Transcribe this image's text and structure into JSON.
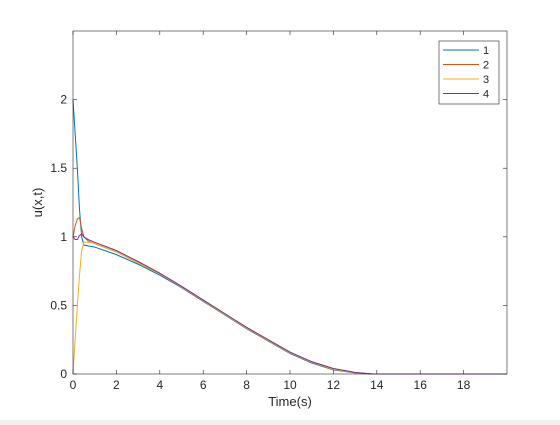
{
  "chart_data": {
    "type": "line",
    "title": "",
    "xlabel": "Time(s)",
    "ylabel": "u(x,t)",
    "xlim": [
      0,
      20
    ],
    "ylim": [
      0,
      2.5
    ],
    "xticks": [
      0,
      2,
      4,
      6,
      8,
      10,
      12,
      14,
      16,
      18
    ],
    "yticks": [
      0,
      0.5,
      1,
      1.5,
      2
    ],
    "ytick_labels": [
      "0",
      "0.5",
      "1",
      "1.5",
      "2"
    ],
    "grid": false,
    "legend_position": "top-right",
    "series": [
      {
        "name": "1",
        "color": "#0072BD",
        "points": [
          [
            0,
            2.0
          ],
          [
            0.1,
            1.75
          ],
          [
            0.2,
            1.5
          ],
          [
            0.3,
            1.2
          ],
          [
            0.4,
            1.0
          ],
          [
            0.5,
            0.94
          ],
          [
            0.8,
            0.93
          ],
          [
            1,
            0.925
          ],
          [
            2,
            0.87
          ],
          [
            3,
            0.8
          ],
          [
            4,
            0.72
          ],
          [
            5,
            0.63
          ],
          [
            6,
            0.53
          ],
          [
            7,
            0.43
          ],
          [
            8,
            0.33
          ],
          [
            9,
            0.24
          ],
          [
            10,
            0.15
          ],
          [
            11,
            0.08
          ],
          [
            12,
            0.03
          ],
          [
            13,
            0.008
          ],
          [
            13.8,
            0.0
          ],
          [
            20,
            0.0
          ]
        ]
      },
      {
        "name": "2",
        "color": "#D95319",
        "points": [
          [
            0,
            1.0
          ],
          [
            0.1,
            1.08
          ],
          [
            0.2,
            1.13
          ],
          [
            0.3,
            1.14
          ],
          [
            0.4,
            1.06
          ],
          [
            0.5,
            1.0
          ],
          [
            0.7,
            0.97
          ],
          [
            1,
            0.95
          ],
          [
            2,
            0.89
          ],
          [
            3,
            0.81
          ],
          [
            4,
            0.73
          ],
          [
            5,
            0.635
          ],
          [
            6,
            0.535
          ],
          [
            7,
            0.435
          ],
          [
            8,
            0.335
          ],
          [
            9,
            0.245
          ],
          [
            10,
            0.155
          ],
          [
            11,
            0.085
          ],
          [
            12,
            0.035
          ],
          [
            13,
            0.01
          ],
          [
            13.8,
            0.0
          ],
          [
            20,
            0.0
          ]
        ]
      },
      {
        "name": "3",
        "color": "#EDB120",
        "points": [
          [
            0,
            0.0
          ],
          [
            0.1,
            0.25
          ],
          [
            0.2,
            0.5
          ],
          [
            0.3,
            0.72
          ],
          [
            0.4,
            0.9
          ],
          [
            0.5,
            0.96
          ],
          [
            0.8,
            0.96
          ],
          [
            1,
            0.95
          ],
          [
            2,
            0.89
          ],
          [
            3,
            0.81
          ],
          [
            4,
            0.73
          ],
          [
            5,
            0.635
          ],
          [
            6,
            0.535
          ],
          [
            7,
            0.435
          ],
          [
            8,
            0.335
          ],
          [
            9,
            0.245
          ],
          [
            10,
            0.155
          ],
          [
            11,
            0.085
          ],
          [
            12,
            0.035
          ],
          [
            13,
            0.01
          ],
          [
            13.8,
            0.0
          ],
          [
            20,
            0.0
          ]
        ]
      },
      {
        "name": "4",
        "color": "#7E2F8E",
        "points": [
          [
            0,
            1.0
          ],
          [
            0.1,
            0.98
          ],
          [
            0.2,
            0.98
          ],
          [
            0.3,
            1.01
          ],
          [
            0.4,
            1.02
          ],
          [
            0.5,
            1.0
          ],
          [
            0.7,
            0.98
          ],
          [
            1,
            0.96
          ],
          [
            2,
            0.9
          ],
          [
            3,
            0.82
          ],
          [
            4,
            0.735
          ],
          [
            5,
            0.64
          ],
          [
            6,
            0.54
          ],
          [
            7,
            0.44
          ],
          [
            8,
            0.34
          ],
          [
            9,
            0.25
          ],
          [
            10,
            0.16
          ],
          [
            11,
            0.09
          ],
          [
            12,
            0.04
          ],
          [
            13,
            0.012
          ],
          [
            13.8,
            0.0
          ],
          [
            20,
            0.0
          ]
        ]
      }
    ]
  }
}
